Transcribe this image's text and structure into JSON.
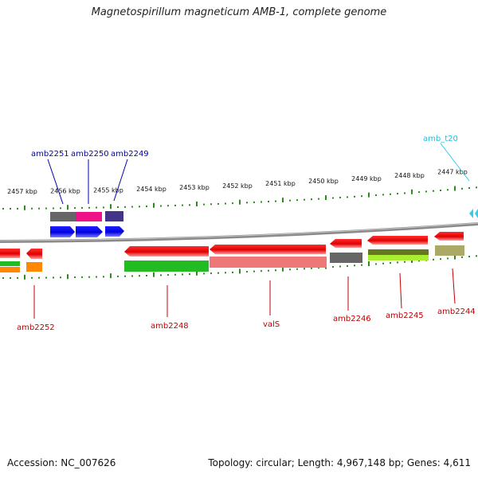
{
  "title": "Magnetospirillum magneticum AMB-1, complete genome",
  "accession": "Accession: NC_007626",
  "topology": "Topology: circular; Length: 4,967,148 bp; Genes: 4,611",
  "colors": {
    "backbone": "#8a8a8a",
    "tick": "#2e8b1e",
    "forward_cds": "#0000ee",
    "reverse_cds": "#ee0000",
    "forward_label": "#0000b0",
    "reverse_label": "#c00000",
    "trna": "#33ccee"
  },
  "ticks": [
    "2457 kbp",
    "2456 kbp",
    "2455 kbp",
    "2454 kbp",
    "2453 kbp",
    "2452 kbp",
    "2451 kbp",
    "2450 kbp",
    "2449 kbp",
    "2448 kbp",
    "2447 kbp"
  ],
  "forward_genes": [
    {
      "label": "amb2251",
      "cog": "#666666"
    },
    {
      "label": "amb2250",
      "cog": "#ee1188"
    },
    {
      "label": "amb2249",
      "cog": "#443388"
    }
  ],
  "trna_genes": [
    {
      "label": "amb_t20"
    }
  ],
  "reverse_genes": [
    {
      "label": "amb2252",
      "cog": "#ff8800"
    },
    {
      "label": "amb2248",
      "cog": "#22bb22"
    },
    {
      "label": "valS",
      "cog": "#ee7777"
    },
    {
      "label": "amb2246",
      "cog": "#666666"
    },
    {
      "label": "amb2245",
      "cog": "#88cc22"
    },
    {
      "label": "amb2244",
      "cog": "#aaaa66"
    }
  ]
}
